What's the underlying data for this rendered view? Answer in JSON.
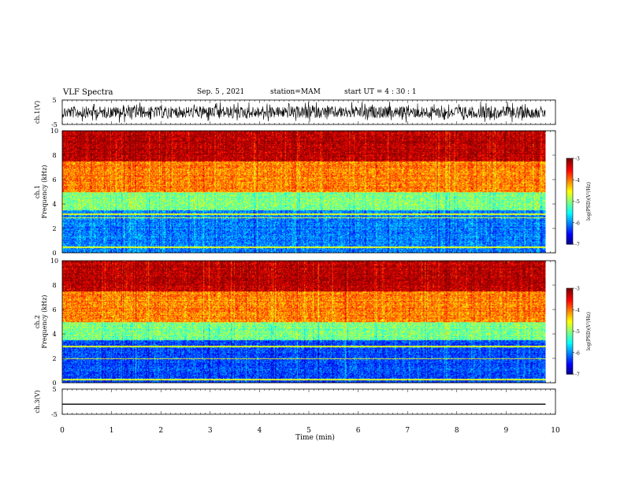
{
  "header": {
    "title": "VLF Spectra",
    "date": "Sep. 5 , 2021",
    "station": "station=MAM",
    "start": "start UT =  4 : 30 : 1"
  },
  "chart_data": [
    {
      "type": "line",
      "panel": "ch.1 waveform",
      "ylabel": "ch.1(V)",
      "ylim": [
        -5,
        5
      ],
      "yticks": [
        "5",
        "-5"
      ],
      "xlim": [
        0,
        10
      ],
      "trace_end_min": 9.8,
      "description_values": {
        "amplitude_max": 5,
        "amplitude_min": -5
      }
    },
    {
      "type": "heatmap",
      "panel": "ch.1 spectrogram",
      "ylabel": "ch.1\nFrequency (kHz)",
      "ylim": [
        0,
        10
      ],
      "yticks": [
        "0",
        "2",
        "4",
        "6",
        "8",
        "10"
      ],
      "xlim": [
        0,
        9.8
      ],
      "colorbar": {
        "label": "log(PSD)(V²/Hz)",
        "range": [
          -7,
          -3
        ],
        "ticks": [
          "-3",
          "-4",
          "-5",
          "-6",
          "-7"
        ]
      },
      "bands_khz": [
        {
          "from": 0,
          "to": 3.5,
          "level": -6
        },
        {
          "from": 3.5,
          "to": 5.0,
          "level": -5
        },
        {
          "from": 5.0,
          "to": 7.5,
          "level": -4
        },
        {
          "from": 7.5,
          "to": 10,
          "level": -3.2
        }
      ],
      "lines_khz": [
        0.5,
        2.9,
        3.2
      ]
    },
    {
      "type": "heatmap",
      "panel": "ch.2 spectrogram",
      "ylabel": "ch.2\nFrequency (kHz)",
      "ylim": [
        0,
        10
      ],
      "yticks": [
        "0",
        "2",
        "4",
        "6",
        "8",
        "10"
      ],
      "xlim": [
        0,
        9.8
      ],
      "colorbar": {
        "label": "log(PSD)(V²/Hz)",
        "range": [
          -7,
          -3
        ],
        "ticks": [
          "-3",
          "-4",
          "-5",
          "-6",
          "-7"
        ]
      },
      "bands_khz": [
        {
          "from": 0,
          "to": 3.5,
          "level": -6.2
        },
        {
          "from": 3.5,
          "to": 5.0,
          "level": -5
        },
        {
          "from": 5.0,
          "to": 7.5,
          "level": -4
        },
        {
          "from": 7.5,
          "to": 10,
          "level": -3.2
        }
      ],
      "lines_khz": [
        0.3,
        2.0,
        3.0
      ]
    },
    {
      "type": "line",
      "panel": "ch.3 waveform",
      "ylabel": "ch.3(V)",
      "ylim": [
        -5,
        5
      ],
      "yticks": [
        "5",
        "-5"
      ],
      "xlim": [
        0,
        10
      ],
      "constant_value": -1,
      "trace_end_min": 9.8
    }
  ],
  "xaxis": {
    "label": "Time (min)",
    "ticks": [
      "0",
      "1",
      "2",
      "3",
      "4",
      "5",
      "6",
      "7",
      "8",
      "9",
      "10"
    ]
  }
}
